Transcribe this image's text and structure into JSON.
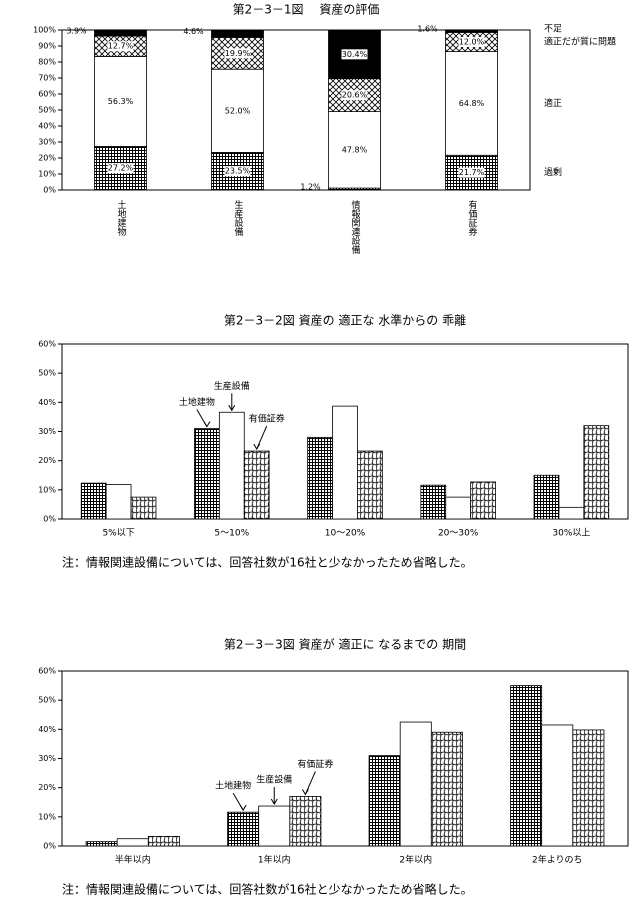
{
  "chart_data": [
    {
      "type": "stacked_bar",
      "title": "第2－3－1図　 資産の評価",
      "categories": [
        "土地建物",
        "生産設備",
        "情報関連設備",
        "有価証券"
      ],
      "series": [
        {
          "name": "過剰",
          "color": "#000000",
          "pattern": "grid",
          "values": [
            27.2,
            23.5,
            1.2,
            21.7
          ],
          "value_labels": [
            "27.2%",
            "23.5%",
            "1.2%",
            "21.7%"
          ]
        },
        {
          "name": "適正",
          "color": "#ffffff",
          "pattern": "none",
          "values": [
            56.3,
            52.0,
            47.8,
            64.8
          ],
          "value_labels": [
            "56.3%",
            "52.0%",
            "47.8%",
            "64.8%"
          ]
        },
        {
          "name": "適正だが質に問題",
          "color": "#000000",
          "pattern": "cross",
          "values": [
            12.7,
            19.9,
            20.6,
            12.0
          ],
          "value_labels": [
            "12.7%",
            "19.9%",
            "20.6%",
            "12.0%"
          ]
        },
        {
          "name": "不足",
          "color": "#000000",
          "pattern": "solid",
          "values": [
            3.9,
            4.6,
            30.4,
            1.6
          ],
          "value_labels": [
            "3.9%",
            "4.6%",
            "30.4%",
            "1.6%"
          ]
        }
      ],
      "ylim": [
        0,
        100
      ],
      "yticks": [
        {
          "value": 0,
          "label": "0%"
        },
        {
          "value": 10,
          "label": "10%"
        },
        {
          "value": 20,
          "label": "20%"
        },
        {
          "value": 30,
          "label": "30%"
        },
        {
          "value": 40,
          "label": "40%"
        },
        {
          "value": 50,
          "label": "50%"
        },
        {
          "value": 60,
          "label": "60%"
        },
        {
          "value": 70,
          "label": "70%"
        },
        {
          "value": 80,
          "label": "80%"
        },
        {
          "value": 90,
          "label": "90%"
        },
        {
          "value": 100,
          "label": "100%"
        }
      ]
    },
    {
      "type": "bar",
      "title": "第2－3－2図  資産の 適正な 水準からの 乖離",
      "categories": [
        "5%以下",
        "5～10%",
        "10～20%",
        "20～30%",
        "30%以上"
      ],
      "series": [
        {
          "name": "土地建物",
          "color": "#000000",
          "pattern": "grid",
          "values": [
            12.3,
            31,
            28,
            11.6,
            15
          ]
        },
        {
          "name": "生産設備",
          "color": "#ffffff",
          "pattern": "none",
          "values": [
            11.8,
            36.6,
            38.7,
            7.5,
            4
          ]
        },
        {
          "name": "有価証券",
          "color": "#000000",
          "pattern": "wave",
          "values": [
            7.5,
            23.3,
            23.3,
            12.7,
            32
          ]
        }
      ],
      "ylim": [
        0,
        60
      ],
      "yticks": [
        {
          "value": 0,
          "label": "0%"
        },
        {
          "value": 10,
          "label": "10%"
        },
        {
          "value": 20,
          "label": "20%"
        },
        {
          "value": 30,
          "label": "30%"
        },
        {
          "value": 40,
          "label": "40%"
        },
        {
          "value": 50,
          "label": "50%"
        },
        {
          "value": 60,
          "label": "60%"
        }
      ],
      "note": "注：情報関連設備については、回答社数が16社と少なかったため省略した。"
    },
    {
      "type": "bar",
      "title": "第2－3－3図  資産が 適正に なるまでの 期間",
      "categories": [
        "半年以内",
        "1年以内",
        "2年以内",
        "2年よりのち"
      ],
      "series": [
        {
          "name": "土地建物",
          "color": "#000000",
          "pattern": "grid",
          "values": [
            1.5,
            11.6,
            31,
            55
          ]
        },
        {
          "name": "生産設備",
          "color": "#ffffff",
          "pattern": "none",
          "values": [
            2.5,
            13.7,
            42.5,
            41.5
          ]
        },
        {
          "name": "有価証券",
          "color": "#000000",
          "pattern": "wave",
          "values": [
            3.3,
            17,
            39,
            39.8
          ]
        }
      ],
      "ylim": [
        0,
        60
      ],
      "yticks": [
        {
          "value": 0,
          "label": "0%"
        },
        {
          "value": 10,
          "label": "10%"
        },
        {
          "value": 20,
          "label": "20%"
        },
        {
          "value": 30,
          "label": "30%"
        },
        {
          "value": 40,
          "label": "40%"
        },
        {
          "value": 50,
          "label": "50%"
        },
        {
          "value": 60,
          "label": "60%"
        }
      ],
      "note": "注：情報関連設備については、回答社数が16社と少なかったため省略した。"
    }
  ]
}
